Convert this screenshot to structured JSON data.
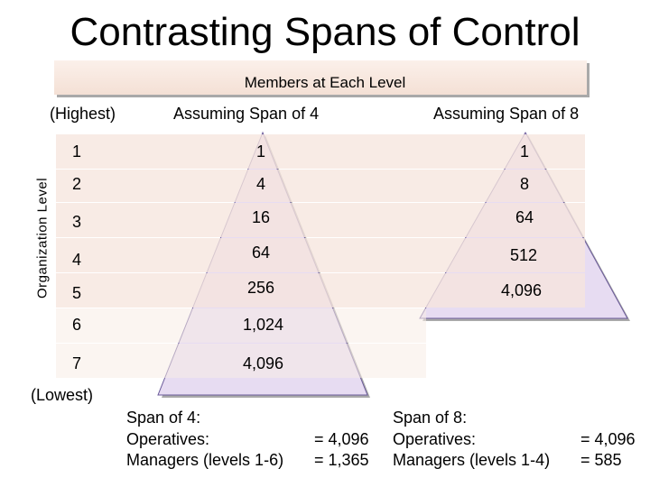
{
  "title": "Contrasting Spans of Control",
  "banner": "Members at Each Level",
  "headers": {
    "highest": "(Highest)",
    "span4": "Assuming Span of 4",
    "span8": "Assuming Span of 8",
    "lowest": "(Lowest)"
  },
  "axis_label": "Organization Level",
  "rows": [
    {
      "level": "1",
      "span4": "1",
      "span8": "1"
    },
    {
      "level": "2",
      "span4": "4",
      "span8": "8"
    },
    {
      "level": "3",
      "span4": "16",
      "span8": "64"
    },
    {
      "level": "4",
      "span4": "64",
      "span8": "512"
    },
    {
      "level": "5",
      "span4": "256",
      "span8": "4,096"
    },
    {
      "level": "6",
      "span4": "1,024",
      "span8": ""
    },
    {
      "level": "7",
      "span4": "4,096",
      "span8": ""
    }
  ],
  "summary_span4": {
    "heading": "Span of 4:",
    "operatives_label": "Operatives:",
    "operatives_value": "= 4,096",
    "managers_label": "Managers (levels 1-6)",
    "managers_value": "= 1,365"
  },
  "summary_span8": {
    "heading": "Span of 8:",
    "operatives_label": "Operatives:",
    "operatives_value": "= 4,096",
    "managers_label": "Managers (levels 1-4)",
    "managers_value": "= 585"
  },
  "colors": {
    "triangle_fill": "#e7dcf2",
    "triangle_edge": "#6a5a9a",
    "band": "#f6e6de",
    "shadow": "#a9a9a9"
  }
}
